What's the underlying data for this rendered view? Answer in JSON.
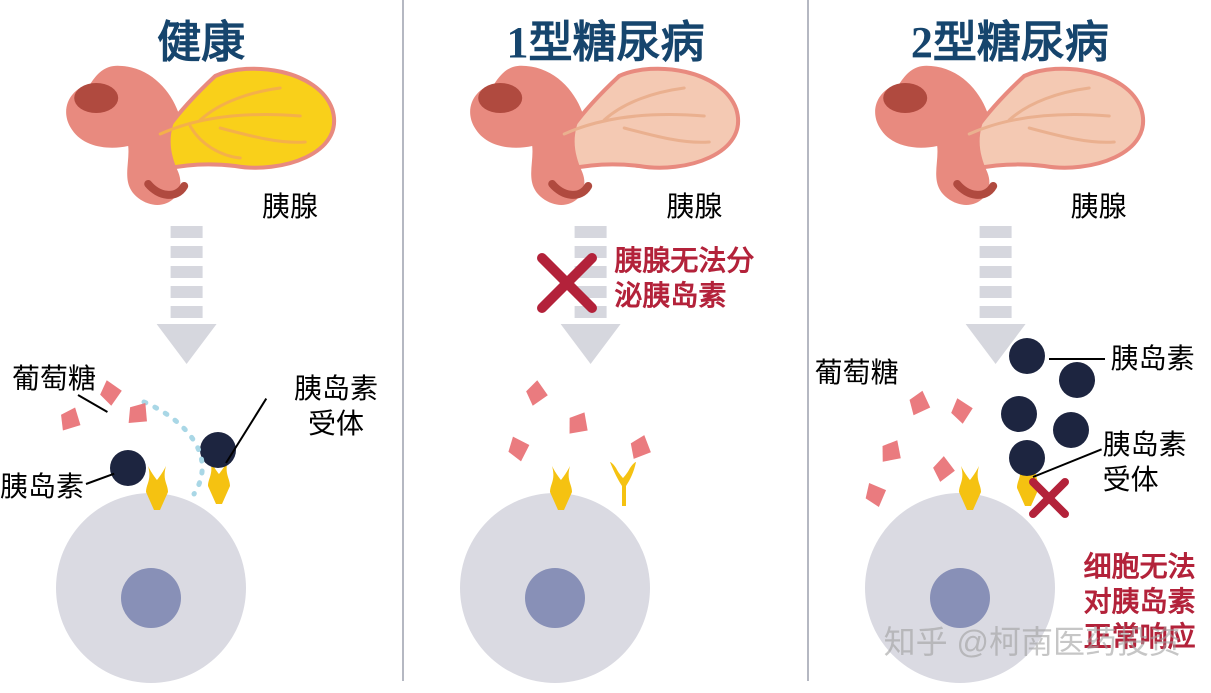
{
  "colors": {
    "title": "#16456d",
    "warn": "#b3223a",
    "pancreas_body": "#e88a7f",
    "pancreas_dark": "#d46a5c",
    "pancreas_healthy_fill": "#f9d01a",
    "pancreas_sick_fill": "#f4c9b3",
    "veins": "#f4b04a",
    "arrow_gray": "#d6d7de",
    "cell_outer": "#dadae2",
    "cell_nucleus": "#8890b7",
    "insulin": "#1d2540",
    "glucose": "#ea7b7f",
    "glucose_dark": "#d4595e",
    "receptor": "#f5c211",
    "xmark": "#b3223a",
    "dotted": "#a9d7e6",
    "leader": "#2a2a2a"
  },
  "panels": {
    "healthy": {
      "title": "健康",
      "pancreas_label": "胰腺",
      "glucose_label": "葡萄糖",
      "insulin_label": "胰岛素",
      "receptor_label": "胰岛素受体"
    },
    "type1": {
      "title": "1型糖尿病",
      "pancreas_label": "胰腺",
      "warning": "胰腺无法分泌胰岛素"
    },
    "type2": {
      "title": "2型糖尿病",
      "pancreas_label": "胰腺",
      "glucose_label": "葡萄糖",
      "insulin_label": "胰岛素",
      "receptor_label": "胰岛素受体",
      "warning": "细胞无法对胰岛素正常响应"
    }
  },
  "watermark": "知乎 @柯南医药投资"
}
